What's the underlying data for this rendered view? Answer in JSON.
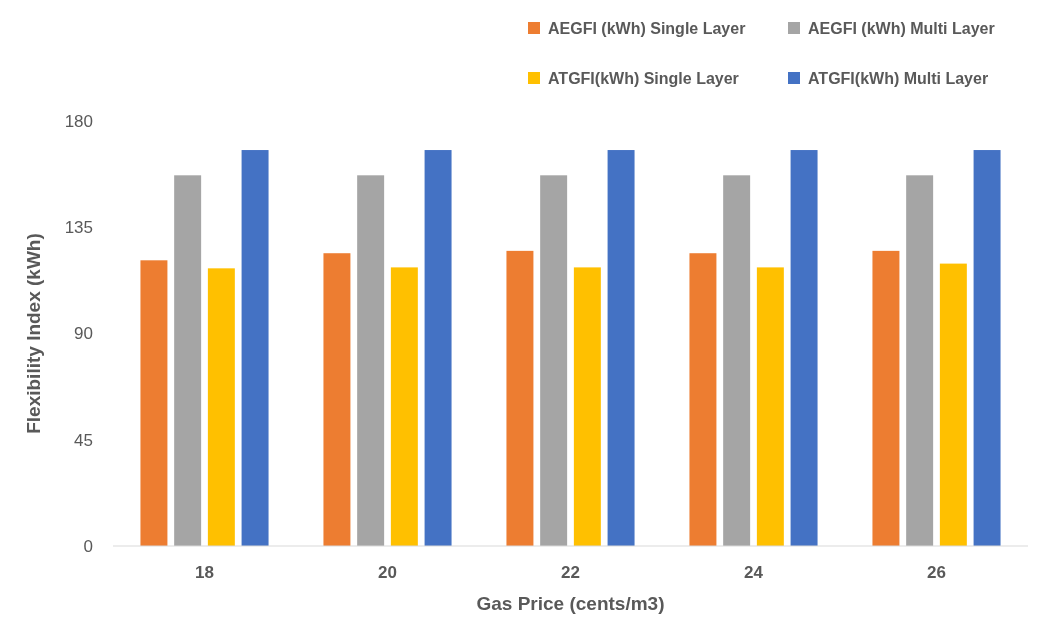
{
  "chart_data": {
    "type": "bar",
    "xlabel": "Gas Price (cents/m3)",
    "ylabel": "Flexibility Index (kWh)",
    "categories": [
      "18",
      "20",
      "22",
      "24",
      "26"
    ],
    "series": [
      {
        "name": "AEGFI (kWh) Single Layer",
        "color": "#ed7d31",
        "values": [
          121,
          124,
          125,
          124,
          125
        ]
      },
      {
        "name": "AEGFI (kWh) Multi Layer",
        "color": "#a5a5a5",
        "values": [
          157,
          157,
          157,
          157,
          157
        ]
      },
      {
        "name": "ATGFI(kWh) Single Layer",
        "color": "#ffc000",
        "values": [
          117.6,
          118,
          118,
          118,
          119.6
        ]
      },
      {
        "name": "ATGFI(kWh) Multi Layer",
        "color": "#4472c4",
        "values": [
          167.7,
          167.7,
          167.7,
          167.7,
          167.7
        ]
      }
    ],
    "ylim": [
      0,
      180
    ],
    "yticks": [
      0,
      45,
      90,
      135,
      180
    ],
    "grid": false,
    "legend": "top right"
  }
}
